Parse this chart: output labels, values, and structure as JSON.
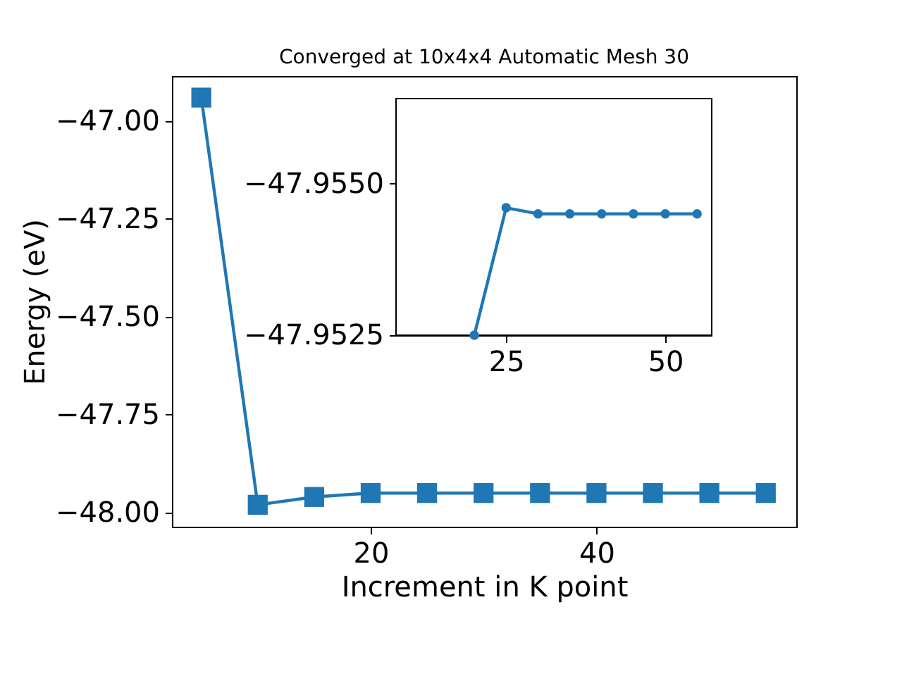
{
  "chart_data": [
    {
      "type": "line",
      "title": "Converged at 10x4x4 Automatic Mesh 30",
      "xlabel": "Increment in K point",
      "ylabel": "Energy (eV)",
      "x": [
        5,
        10,
        15,
        20,
        25,
        30,
        35,
        40,
        45,
        50,
        55
      ],
      "series": [
        {
          "color": "#1f77b4",
          "values": [
            -46.94,
            -47.98,
            -47.96,
            -47.95,
            -47.95,
            -47.95,
            -47.95,
            -47.95,
            -47.95,
            -47.95,
            -47.95
          ]
        }
      ],
      "xlim": [
        2.4,
        57.7
      ],
      "ylim": [
        -48.036,
        -46.885
      ],
      "xticks": [
        20,
        40
      ],
      "yticks": [
        {
          "value": -48,
          "label": "−48.00"
        },
        {
          "value": -47.75,
          "label": "−47.75"
        },
        {
          "value": -47.5,
          "label": "−47.50"
        },
        {
          "value": -47.25,
          "label": "−47.25"
        },
        {
          "value": -47,
          "label": "−47.00"
        }
      ],
      "marker": "square"
    },
    {
      "type": "line",
      "x": [
        20,
        25,
        30,
        35,
        40,
        45,
        50,
        55
      ],
      "series": [
        {
          "color": "#1f77b4",
          "values": [
            -47.9525,
            -47.9546,
            -47.9545,
            -47.9545,
            -47.9545,
            -47.9545,
            -47.9545,
            -47.9545
          ]
        }
      ],
      "xlim": [
        7.7,
        57.3
      ],
      "ylim": [
        -47.9525,
        -47.9564
      ],
      "xticks": [
        25,
        50
      ],
      "yticks": [
        {
          "value": -47.955,
          "label": "−47.9550"
        },
        {
          "value": -47.9525,
          "label": "−47.9525"
        }
      ],
      "marker": "circle"
    }
  ]
}
